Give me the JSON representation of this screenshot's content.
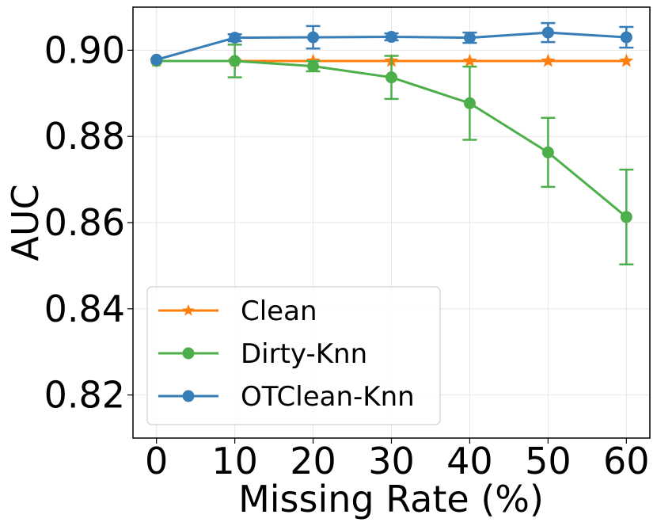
{
  "chart_data": {
    "type": "line",
    "title": "",
    "xlabel": "Missing Rate (%)",
    "ylabel": "AUC",
    "x": [
      0,
      10,
      20,
      30,
      40,
      50,
      60
    ],
    "xlim": [
      -3,
      63
    ],
    "ylim": [
      0.81,
      0.91
    ],
    "xticks": [
      0,
      10,
      20,
      30,
      40,
      50,
      60
    ],
    "yticks": [
      0.82,
      0.84,
      0.86,
      0.88,
      0.9
    ],
    "ytick_labels": [
      "0.82",
      "0.84",
      "0.86",
      "0.88",
      "0.90"
    ],
    "xtick_labels": [
      "0",
      "10",
      "20",
      "30",
      "40",
      "50",
      "60"
    ],
    "grid": true,
    "legend_position": "lower-left",
    "series": [
      {
        "name": "Clean",
        "color": "#ff7f0e",
        "marker": "star",
        "values": [
          0.8975,
          0.8975,
          0.8975,
          0.8975,
          0.8975,
          0.8975,
          0.8975
        ],
        "errors": [
          0,
          0,
          0,
          0,
          0,
          0,
          0
        ]
      },
      {
        "name": "Dirty-Knn",
        "color": "#4daf4a",
        "marker": "circle",
        "values": [
          0.8975,
          0.8975,
          0.8963,
          0.8937,
          0.8877,
          0.8763,
          0.8613
        ],
        "errors": [
          0,
          0.0038,
          0.0012,
          0.005,
          0.0085,
          0.008,
          0.011
        ]
      },
      {
        "name": "OTClean-Knn",
        "color": "#377eb8",
        "marker": "circle",
        "values": [
          0.8978,
          0.9029,
          0.903,
          0.9031,
          0.9029,
          0.9041,
          0.903
        ],
        "errors": [
          0,
          0.0008,
          0.0026,
          0.0008,
          0.0012,
          0.0022,
          0.0024
        ]
      }
    ]
  }
}
